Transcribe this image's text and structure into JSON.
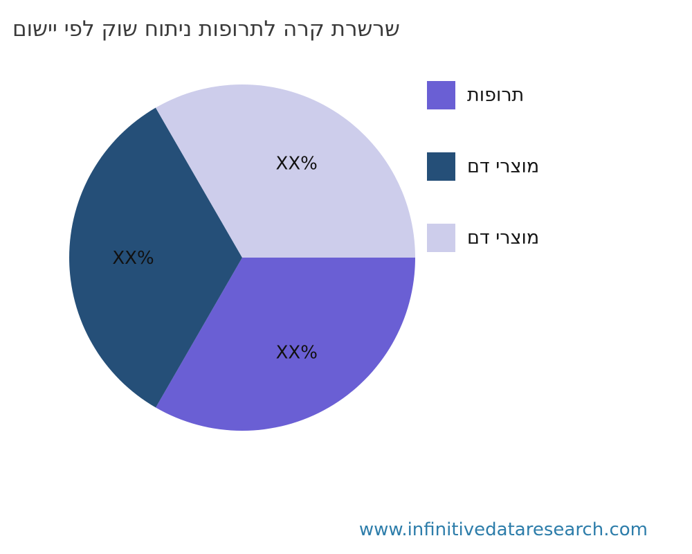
{
  "page": {
    "background": "#ffffff"
  },
  "chart_data": {
    "type": "pie",
    "title": "שרשרת קרה לתרופות ניתוח שוק לפי יישום",
    "values": [
      33.33,
      33.33,
      33.34
    ],
    "slice_labels": [
      "XX%",
      "XX%",
      "XX%"
    ],
    "legend": [
      {
        "label": "תרופות",
        "color": "#6A5FD4"
      },
      {
        "label": "מוצרי דם",
        "color": "#254F78"
      },
      {
        "label": "מוצרי דם",
        "color": "#CDCDEB"
      }
    ],
    "start_angle_deg": 0,
    "direction": "clockwise",
    "pct_distance": 0.63,
    "legend_position": "right",
    "slice_label_color": "#111111",
    "title_color": "#3a3a3a"
  },
  "footer": {
    "url": "www.infinitivedataresearch.com",
    "color": "#2D7DAA"
  }
}
